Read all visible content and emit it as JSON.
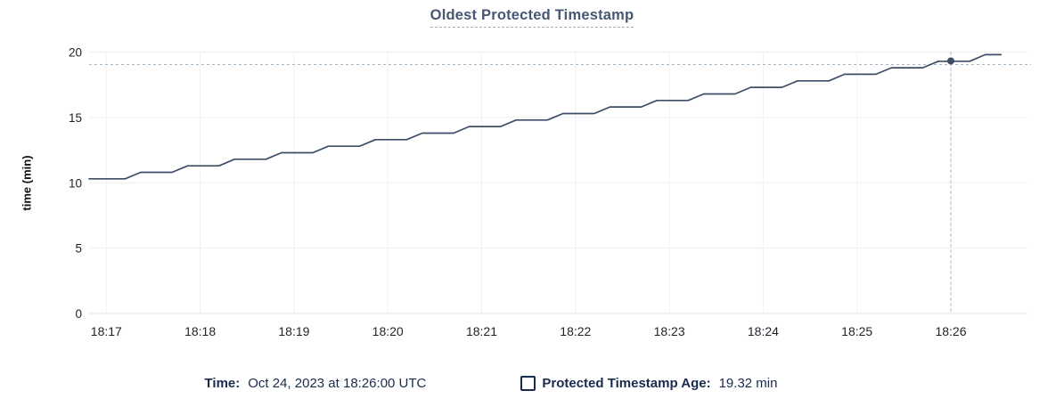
{
  "title": "Oldest Protected Timestamp",
  "tooltip": {
    "time_label": "Time:",
    "time_value": "Oct 24, 2023 at 18:26:00 UTC",
    "series_label": "Protected Timestamp Age:",
    "series_value": "19.32 min"
  },
  "colors": {
    "line": "#3E4D66",
    "dot": "#3E4D66",
    "title": "#475872",
    "title_underline": "#A2AEBC",
    "legend_text": "#1B2B4E",
    "crosshair": "#A6B5C3",
    "grid_h": "#EDEFF1",
    "grid_v": "#F0F1F3",
    "axis_line": "#DDE0E4",
    "tick_label": "#1E2328"
  },
  "chart_data": {
    "type": "line",
    "title": "Oldest Protected Timestamp",
    "xlabel": "",
    "ylabel": "time (min)",
    "ylim": [
      0,
      20
    ],
    "yticks": [
      0,
      5,
      10,
      15,
      20
    ],
    "xticks": [
      "18:17",
      "18:18",
      "18:19",
      "18:20",
      "18:21",
      "18:22",
      "18:23",
      "18:24",
      "18:25",
      "18:26"
    ],
    "x_range": [
      "18:16:49",
      "18:26:49"
    ],
    "grid": true,
    "legend_position": "bottom",
    "series": [
      {
        "name": "Protected Timestamp Age",
        "unit": "min",
        "points": [
          [
            "18:16:49",
            10.3
          ],
          [
            "18:17:12",
            10.3
          ],
          [
            "18:17:22",
            10.8
          ],
          [
            "18:17:42",
            10.8
          ],
          [
            "18:17:52",
            11.3
          ],
          [
            "18:18:12",
            11.3
          ],
          [
            "18:18:22",
            11.8
          ],
          [
            "18:18:42",
            11.8
          ],
          [
            "18:18:52",
            12.3
          ],
          [
            "18:19:12",
            12.3
          ],
          [
            "18:19:22",
            12.8
          ],
          [
            "18:19:42",
            12.8
          ],
          [
            "18:19:52",
            13.3
          ],
          [
            "18:20:12",
            13.3
          ],
          [
            "18:20:22",
            13.8
          ],
          [
            "18:20:42",
            13.8
          ],
          [
            "18:20:52",
            14.3
          ],
          [
            "18:21:12",
            14.3
          ],
          [
            "18:21:22",
            14.8
          ],
          [
            "18:21:42",
            14.8
          ],
          [
            "18:21:52",
            15.3
          ],
          [
            "18:22:12",
            15.3
          ],
          [
            "18:22:22",
            15.8
          ],
          [
            "18:22:42",
            15.8
          ],
          [
            "18:22:52",
            16.3
          ],
          [
            "18:23:12",
            16.3
          ],
          [
            "18:23:22",
            16.8
          ],
          [
            "18:23:42",
            16.8
          ],
          [
            "18:23:52",
            17.3
          ],
          [
            "18:24:12",
            17.3
          ],
          [
            "18:24:22",
            17.8
          ],
          [
            "18:24:42",
            17.8
          ],
          [
            "18:24:52",
            18.3
          ],
          [
            "18:25:12",
            18.3
          ],
          [
            "18:25:22",
            18.8
          ],
          [
            "18:25:42",
            18.8
          ],
          [
            "18:25:52",
            19.3
          ],
          [
            "18:26:12",
            19.3
          ],
          [
            "18:26:22",
            19.8
          ],
          [
            "18:26:32",
            19.8
          ]
        ]
      }
    ],
    "crosshair": {
      "time": "18:26:00",
      "value": 19.32
    }
  }
}
